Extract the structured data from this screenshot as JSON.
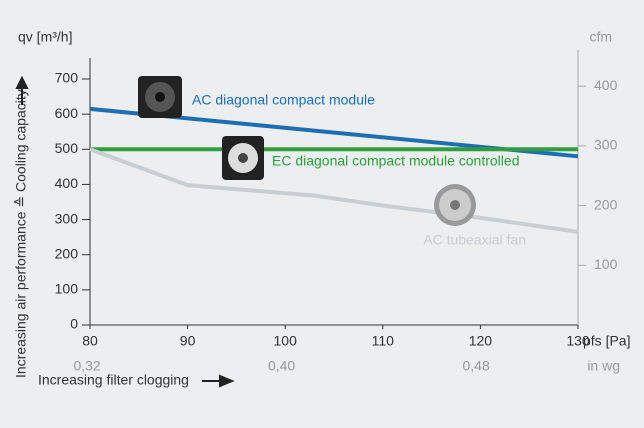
{
  "chart_data": {
    "type": "line",
    "ylabel": "qv [m³/h]",
    "y2label": "cfm",
    "xlabel": "pfs [Pa]",
    "x2label": "in wg",
    "y_axis_title": "Increasing air performance ≙ Cooling capacity",
    "x_axis_title": "Increasing filter clogging",
    "xlim": [
      80,
      130
    ],
    "xticks": [
      80,
      90,
      100,
      110,
      120,
      130
    ],
    "x2lim": [
      0.3212,
      0.5219
    ],
    "x2ticks": [
      {
        "value": 0.32,
        "label": "0,32"
      },
      {
        "value": 0.4,
        "label": "0,40"
      },
      {
        "value": 0.48,
        "label": "0,48"
      }
    ],
    "ylim": [
      0,
      700
    ],
    "yticks": [
      0,
      100,
      200,
      300,
      400,
      500,
      600,
      700
    ],
    "y2lim": [
      0,
      412
    ],
    "y2ticks": [
      100,
      200,
      300,
      400
    ],
    "series": [
      {
        "name": "AC diagonal compact module",
        "color": "#1f6eb4",
        "x": [
          80,
          130
        ],
        "values": [
          615,
          480
        ]
      },
      {
        "name": "EC diagonal compact module controlled",
        "color": "#2e9e3e",
        "x": [
          80,
          130
        ],
        "values": [
          500,
          500
        ]
      },
      {
        "name": "AC tubeaxial fan",
        "color": "#c9ced3",
        "x": [
          80,
          90,
          103,
          110,
          120,
          130
        ],
        "values": [
          500,
          398,
          368,
          340,
          305,
          265
        ]
      }
    ]
  }
}
